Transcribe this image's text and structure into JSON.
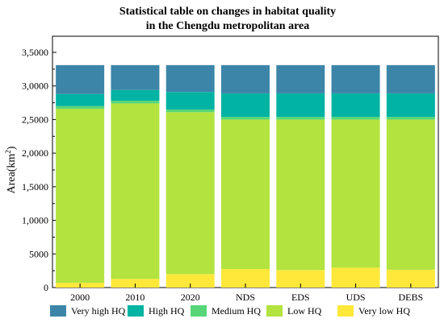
{
  "chart_data": {
    "type": "bar",
    "stacked": true,
    "title": [
      "Statistical table on changes in habitat quality",
      "in the Chengdu metropolitan area"
    ],
    "ylabel_main": "Area(km",
    "ylabel_sup": "2",
    "ylabel_end": ")",
    "xlabel": "",
    "ylim": [
      0,
      35000
    ],
    "yticks": [
      0,
      5000,
      10000,
      15000,
      20000,
      25000,
      30000,
      35000
    ],
    "ytick_labels": [
      "0",
      "5000",
      "1,0000",
      "1,5000",
      "2,0000",
      "2,5000",
      "3,0000",
      "3,5000"
    ],
    "grid": false,
    "legend_position": "bottom",
    "categories": [
      "2000",
      "2010",
      "2020",
      "NDS",
      "EDS",
      "UDS",
      "DEBS"
    ],
    "series": [
      {
        "name": "Very low HQ",
        "color": "#ffe83a",
        "values": [
          700,
          1300,
          2000,
          2750,
          2600,
          2950,
          2650
        ]
      },
      {
        "name": "Low HQ",
        "color": "#b2e33f",
        "values": [
          25900,
          26100,
          24100,
          22250,
          22400,
          22050,
          22350
        ]
      },
      {
        "name": "Medium HQ",
        "color": "#57d678",
        "values": [
          400,
          400,
          400,
          400,
          400,
          400,
          400
        ]
      },
      {
        "name": "High HQ",
        "color": "#00b3a3",
        "values": [
          1800,
          1600,
          2600,
          3500,
          3500,
          3500,
          3500
        ]
      },
      {
        "name": "Very high HQ",
        "color": "#3d85a8",
        "values": [
          4300,
          3700,
          4000,
          4200,
          4200,
          4200,
          4200
        ]
      }
    ],
    "legend_order": [
      "Very high HQ",
      "High HQ",
      "Medium HQ",
      "Low HQ",
      "Very low HQ"
    ]
  }
}
